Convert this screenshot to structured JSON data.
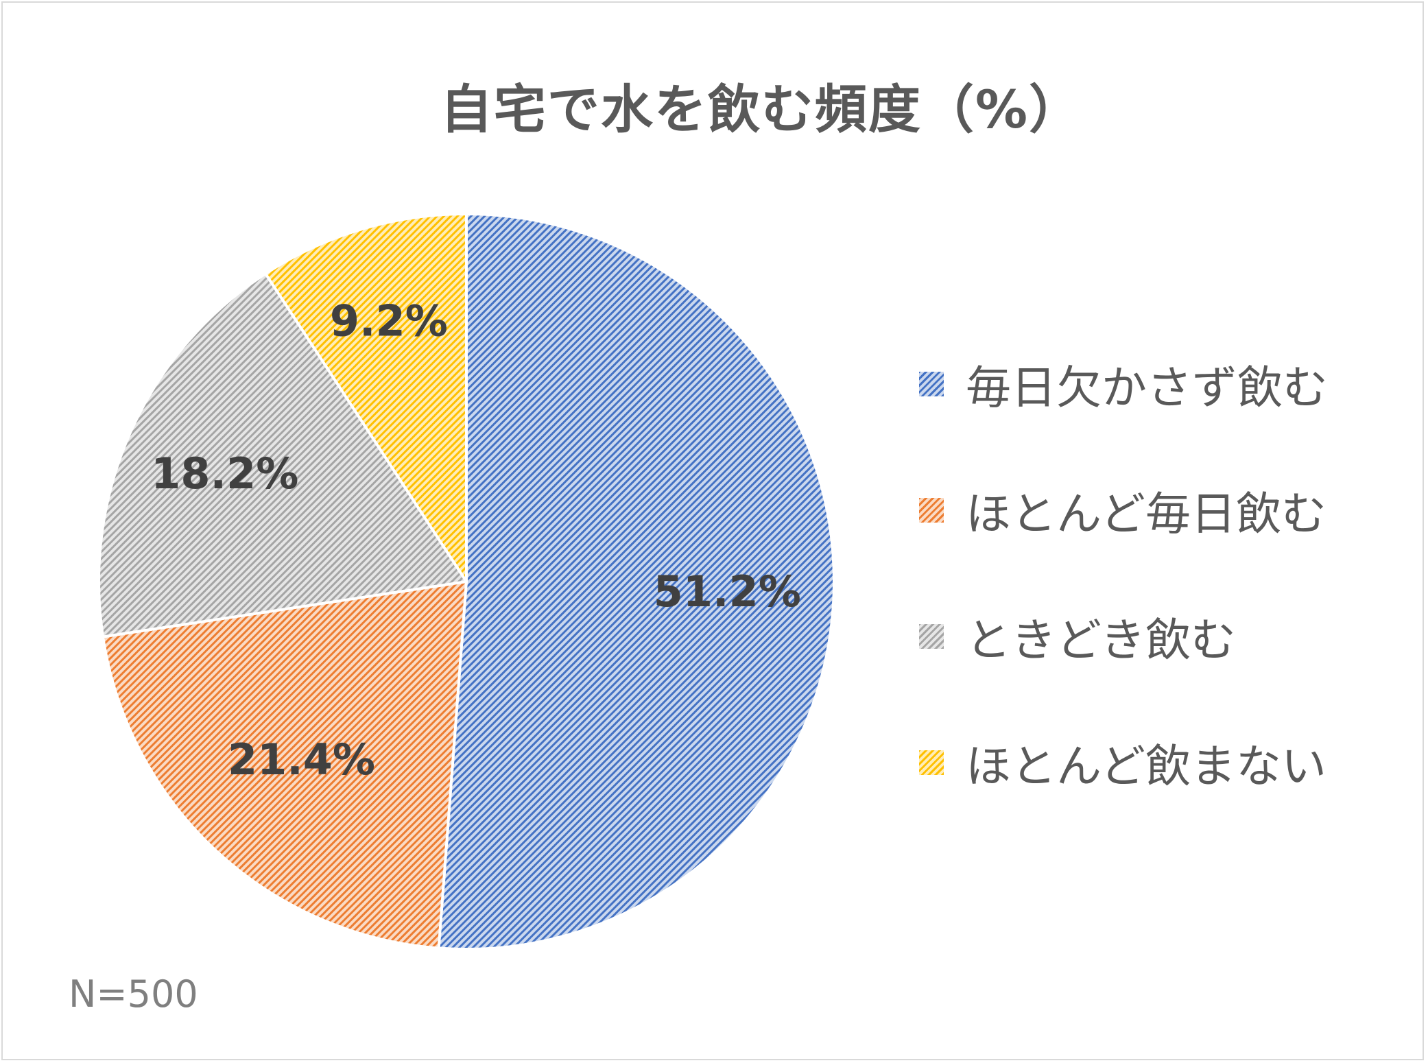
{
  "chart_data": {
    "type": "pie",
    "title": "自宅で水を飲む頻度（%）",
    "categories": [
      "毎日欠かさず飲む",
      "ほとんど毎日飲む",
      "ときどき飲む",
      "ほとんど飲まない"
    ],
    "values": [
      51.2,
      21.4,
      18.2,
      9.2
    ],
    "data_labels": [
      "51.2%",
      "21.4%",
      "18.2%",
      "9.2%"
    ],
    "colors": [
      "#4472c4",
      "#ed7d31",
      "#a5a5a5",
      "#ffc000"
    ],
    "fill_style": "diagonal-hatch",
    "legend_position": "right",
    "note": "N=500"
  }
}
